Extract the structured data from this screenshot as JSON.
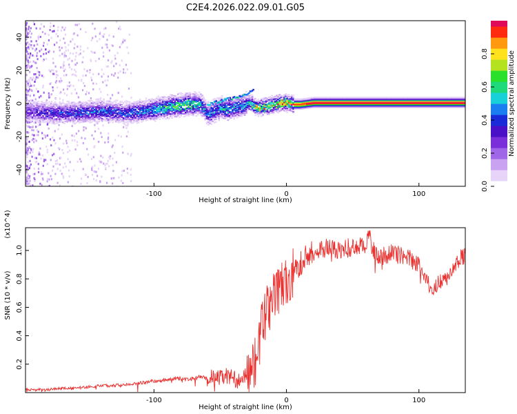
{
  "figure_title": "C2E4.2026.022.09.01.G05",
  "colors": {
    "snr_line": "#e8302e",
    "spectrogram_background": "#ffffff",
    "colormap": [
      "#ffffff",
      "#e7d4f8",
      "#c9a3f1",
      "#a066e8",
      "#7a2fd9",
      "#4a10c8",
      "#1a2bd8",
      "#1a7ef0",
      "#18d0d8",
      "#1fd97a",
      "#2ae02a",
      "#b4e21e",
      "#ffe21e",
      "#ff9a10",
      "#ff2a10",
      "#e00858"
    ]
  },
  "chart_data": [
    {
      "type": "heatmap",
      "name": "spectrogram",
      "xlabel": "Height of straight line (km)",
      "ylabel": "Frequency (Hz)",
      "xlim": [
        -197,
        135
      ],
      "ylim": [
        -50,
        50
      ],
      "xticks": [
        -100,
        0,
        100
      ],
      "xtick_labels": [
        "-100",
        "0",
        "100"
      ],
      "yticks": [
        -40,
        -20,
        0,
        20,
        40
      ],
      "ytick_labels": [
        "-40",
        "-20",
        "0",
        "20",
        "40"
      ],
      "ridge": {
        "x": [
          -197,
          -180,
          -160,
          -140,
          -120,
          -100,
          -85,
          -75,
          -65,
          -60,
          -55,
          -50,
          -45,
          -40,
          -35,
          -28,
          -25,
          -20,
          -15,
          -10,
          -5,
          0,
          5,
          10,
          20,
          135
        ],
        "frequency": [
          -4,
          -5,
          -5,
          -4,
          -5,
          -3,
          -1,
          0,
          0,
          -6,
          -4,
          -2,
          -3,
          -2,
          -1,
          1,
          -1,
          -2,
          -1,
          0,
          1,
          1,
          0,
          0,
          1,
          1
        ],
        "peak_amplitude": [
          0.35,
          0.4,
          0.45,
          0.5,
          0.45,
          0.6,
          0.7,
          0.7,
          0.6,
          0.5,
          0.55,
          0.55,
          0.6,
          0.55,
          0.55,
          0.6,
          0.75,
          0.9,
          0.85,
          0.9,
          0.95,
          0.95,
          0.95,
          0.95,
          1.0,
          1.0
        ]
      },
      "branch": {
        "x": [
          -60,
          -50,
          -40,
          -30,
          -25
        ],
        "frequency": [
          0,
          2,
          4,
          6,
          9
        ]
      },
      "colorbar": {
        "label": "Normalized spectral amplitude",
        "range": [
          0,
          1
        ],
        "ticks": [
          0.0,
          0.2,
          0.4,
          0.6,
          0.8
        ],
        "tick_labels": [
          "0.0",
          "0.2",
          "0.4",
          "0.6",
          "0.8"
        ]
      }
    },
    {
      "type": "line",
      "name": "snr",
      "xlabel": "Height of straight line (km)",
      "ylabel": "SNR (10 * v/v)",
      "scale_label": "(x10^4)",
      "xlim": [
        -197,
        135
      ],
      "ylim": [
        0,
        1.16
      ],
      "xticks": [
        -100,
        0,
        100
      ],
      "xtick_labels": [
        "-100",
        "0",
        "100"
      ],
      "yticks": [
        0.2,
        0.4,
        0.6,
        0.8,
        1.0
      ],
      "ytick_labels": [
        "0.2",
        "0.4",
        "0.6",
        "0.8",
        "1.0"
      ],
      "series": [
        {
          "name": "SNR",
          "x": [
            -197,
            -180,
            -170,
            -160,
            -150,
            -140,
            -130,
            -120,
            -110,
            -100,
            -90,
            -85,
            -80,
            -75,
            -70,
            -65,
            -60,
            -55,
            -50,
            -45,
            -40,
            -35,
            -30,
            -25,
            -22,
            -20,
            -17,
            -15,
            -12,
            -10,
            -7,
            -5,
            -3,
            0,
            3,
            5,
            8,
            10,
            13,
            15,
            18,
            20,
            25,
            30,
            35,
            40,
            45,
            50,
            55,
            60,
            63,
            65,
            70,
            75,
            80,
            85,
            90,
            95,
            100,
            105,
            110,
            115,
            120,
            125,
            130,
            135
          ],
          "values": [
            0.02,
            0.02,
            0.03,
            0.03,
            0.04,
            0.05,
            0.05,
            0.06,
            0.07,
            0.08,
            0.09,
            0.1,
            0.1,
            0.09,
            0.1,
            0.11,
            0.1,
            0.11,
            0.1,
            0.12,
            0.1,
            0.08,
            0.12,
            0.18,
            0.3,
            0.42,
            0.5,
            0.58,
            0.62,
            0.66,
            0.7,
            0.74,
            0.75,
            0.77,
            0.8,
            0.84,
            0.87,
            0.9,
            0.94,
            0.96,
            0.98,
            0.99,
            1.0,
            1.02,
            1.02,
            1.0,
            1.01,
            1.03,
            1.02,
            1.05,
            1.1,
            1.02,
            0.95,
            0.97,
            0.98,
            0.97,
            0.96,
            0.93,
            0.9,
            0.82,
            0.7,
            0.78,
            0.8,
            0.85,
            0.93,
            0.97
          ]
        }
      ]
    }
  ]
}
